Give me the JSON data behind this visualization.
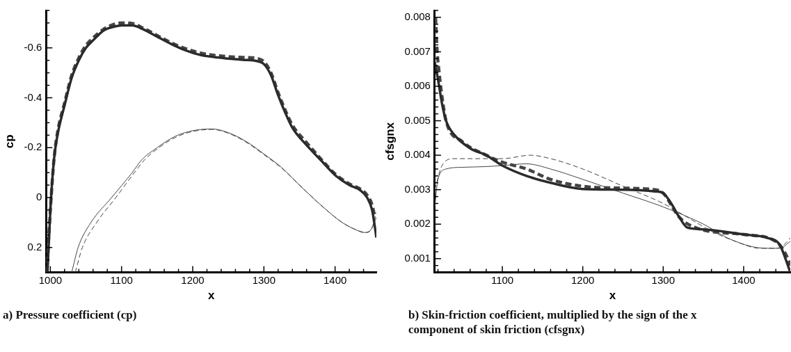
{
  "chart_data": [
    {
      "type": "line",
      "xlabel": "x",
      "ylabel": "cp",
      "xlim": [
        994,
        1458
      ],
      "ylim": [
        0.3,
        -0.75
      ],
      "xticks": [
        1000,
        {
          "value": 1020,
          "label": null
        },
        {
          "value": 1040,
          "label": null
        },
        {
          "value": 1060,
          "label": null
        },
        {
          "value": 1080,
          "label": null
        },
        1100,
        {
          "value": 1120,
          "label": null
        },
        {
          "value": 1140,
          "label": null
        },
        {
          "value": 1160,
          "label": null
        },
        {
          "value": 1180,
          "label": null
        },
        1200,
        {
          "value": 1220,
          "label": null
        },
        {
          "value": 1240,
          "label": null
        },
        {
          "value": 1260,
          "label": null
        },
        {
          "value": 1280,
          "label": null
        },
        1300,
        {
          "value": 1320,
          "label": null
        },
        {
          "value": 1340,
          "label": null
        },
        {
          "value": 1360,
          "label": null
        },
        {
          "value": 1380,
          "label": null
        },
        1400,
        {
          "value": 1420,
          "label": null
        },
        {
          "value": 1440,
          "label": null
        }
      ],
      "yticks": [
        {
          "value": -0.75,
          "label": null
        },
        {
          "value": -0.7,
          "label": null
        },
        {
          "value": -0.65,
          "label": null
        },
        -0.6,
        {
          "value": -0.55,
          "label": null
        },
        {
          "value": -0.5,
          "label": null
        },
        {
          "value": -0.45,
          "label": null
        },
        -0.4,
        {
          "value": -0.35,
          "label": null
        },
        {
          "value": -0.3,
          "label": null
        },
        {
          "value": -0.25,
          "label": null
        },
        -0.2,
        {
          "value": -0.15,
          "label": null
        },
        {
          "value": -0.1,
          "label": null
        },
        {
          "value": -0.05,
          "label": null
        },
        0,
        {
          "value": 0.05,
          "label": null
        },
        {
          "value": 0.1,
          "label": null
        },
        {
          "value": 0.15,
          "label": null
        },
        0.2,
        {
          "value": 0.25,
          "label": null
        },
        {
          "value": 0.3,
          "label": null
        }
      ],
      "grid": false,
      "legend": false,
      "marker": "none",
      "annotations": [
        "a) Pressure coefficient (cp)"
      ],
      "series": [
        {
          "color": "#2b2b2b",
          "line_style": "solid",
          "x": [
            996,
            1000,
            1005,
            1010,
            1020,
            1030,
            1040,
            1050,
            1060,
            1075,
            1090,
            1100,
            1115,
            1130,
            1150,
            1170,
            1190,
            1210,
            1230,
            1250,
            1270,
            1290,
            1300,
            1310,
            1320,
            1330,
            1340,
            1360,
            1380,
            1400,
            1420,
            1435,
            1445,
            1452,
            1456,
            1458
          ],
          "values": [
            0.3,
            0.05,
            -0.15,
            -0.25,
            -0.37,
            -0.48,
            -0.55,
            -0.6,
            -0.63,
            -0.67,
            -0.685,
            -0.69,
            -0.69,
            -0.675,
            -0.645,
            -0.615,
            -0.59,
            -0.572,
            -0.563,
            -0.557,
            -0.552,
            -0.547,
            -0.535,
            -0.49,
            -0.41,
            -0.34,
            -0.28,
            -0.21,
            -0.15,
            -0.09,
            -0.05,
            -0.03,
            0.0,
            0.05,
            0.12,
            0.16
          ]
        },
        {
          "color": "#444444",
          "line_style": "dashed",
          "x": [
            995,
            1000,
            1005,
            1010,
            1020,
            1030,
            1040,
            1050,
            1060,
            1075,
            1090,
            1100,
            1115,
            1130,
            1150,
            1170,
            1190,
            1210,
            1230,
            1250,
            1270,
            1290,
            1300,
            1310,
            1320,
            1330,
            1340,
            1360,
            1380,
            1400,
            1420,
            1435,
            1445,
            1452,
            1456
          ],
          "values": [
            0.3,
            0.05,
            -0.15,
            -0.26,
            -0.38,
            -0.49,
            -0.56,
            -0.61,
            -0.64,
            -0.675,
            -0.695,
            -0.7,
            -0.698,
            -0.68,
            -0.65,
            -0.62,
            -0.597,
            -0.58,
            -0.57,
            -0.565,
            -0.562,
            -0.558,
            -0.545,
            -0.5,
            -0.42,
            -0.35,
            -0.29,
            -0.22,
            -0.155,
            -0.095,
            -0.055,
            -0.035,
            -0.01,
            0.03,
            0.08
          ]
        },
        {
          "color": "#444444",
          "line_style": "solid",
          "x": [
            1030,
            1039,
            1057,
            1086,
            1115,
            1128,
            1150,
            1175,
            1200,
            1227,
            1250,
            1275,
            1300,
            1325,
            1350,
            1380,
            1410,
            1430,
            1440,
            1450,
            1458
          ],
          "values": [
            0.3,
            0.2,
            0.1,
            0.0,
            -0.1,
            -0.15,
            -0.2,
            -0.245,
            -0.268,
            -0.275,
            -0.26,
            -0.225,
            -0.175,
            -0.12,
            -0.05,
            0.03,
            0.1,
            0.13,
            0.14,
            0.13,
            0.08
          ]
        },
        {
          "color": "#444444",
          "line_style": "dashed",
          "x": [
            1035,
            1045,
            1065,
            1092,
            1118,
            1132,
            1150,
            1175,
            1200,
            1227,
            1250,
            1275,
            1300,
            1325,
            1350,
            1380,
            1410,
            1430,
            1445,
            1452,
            1458
          ],
          "values": [
            0.3,
            0.2,
            0.1,
            0.0,
            -0.1,
            -0.15,
            -0.195,
            -0.24,
            -0.265,
            -0.273,
            -0.258,
            -0.222,
            -0.172,
            -0.118,
            -0.05,
            0.03,
            0.1,
            0.13,
            0.14,
            0.12,
            0.06
          ]
        }
      ]
    },
    {
      "type": "line",
      "xlabel": "x",
      "ylabel": "cfsgnx",
      "xlim": [
        1016,
        1458
      ],
      "ylim": [
        0.0006,
        0.0082
      ],
      "xticks": [
        {
          "value": 1020,
          "label": null
        },
        {
          "value": 1040,
          "label": null
        },
        {
          "value": 1060,
          "label": null
        },
        {
          "value": 1080,
          "label": null
        },
        1100,
        {
          "value": 1120,
          "label": null
        },
        {
          "value": 1140,
          "label": null
        },
        {
          "value": 1160,
          "label": null
        },
        {
          "value": 1180,
          "label": null
        },
        1200,
        {
          "value": 1220,
          "label": null
        },
        {
          "value": 1240,
          "label": null
        },
        {
          "value": 1260,
          "label": null
        },
        {
          "value": 1280,
          "label": null
        },
        1300,
        {
          "value": 1320,
          "label": null
        },
        {
          "value": 1340,
          "label": null
        },
        {
          "value": 1360,
          "label": null
        },
        {
          "value": 1380,
          "label": null
        },
        1400,
        {
          "value": 1420,
          "label": null
        },
        {
          "value": 1440,
          "label": null
        }
      ],
      "yticks": [
        {
          "value": 0.0006,
          "label": null
        },
        {
          "value": 0.0008,
          "label": null
        },
        0.001,
        {
          "value": 0.0012,
          "label": null
        },
        {
          "value": 0.0014,
          "label": null
        },
        {
          "value": 0.0016,
          "label": null
        },
        {
          "value": 0.0018,
          "label": null
        },
        0.002,
        {
          "value": 0.0022,
          "label": null
        },
        {
          "value": 0.0024,
          "label": null
        },
        {
          "value": 0.0026,
          "label": null
        },
        {
          "value": 0.0028,
          "label": null
        },
        0.003,
        {
          "value": 0.0032,
          "label": null
        },
        {
          "value": 0.0034,
          "label": null
        },
        {
          "value": 0.0036,
          "label": null
        },
        {
          "value": 0.0038,
          "label": null
        },
        0.004,
        {
          "value": 0.0042,
          "label": null
        },
        {
          "value": 0.0044,
          "label": null
        },
        {
          "value": 0.0046,
          "label": null
        },
        {
          "value": 0.0048,
          "label": null
        },
        0.005,
        {
          "value": 0.0052,
          "label": null
        },
        {
          "value": 0.0054,
          "label": null
        },
        {
          "value": 0.0056,
          "label": null
        },
        {
          "value": 0.0058,
          "label": null
        },
        0.006,
        {
          "value": 0.0062,
          "label": null
        },
        {
          "value": 0.0064,
          "label": null
        },
        {
          "value": 0.0066,
          "label": null
        },
        {
          "value": 0.0068,
          "label": null
        },
        0.007,
        {
          "value": 0.0072,
          "label": null
        },
        {
          "value": 0.0074,
          "label": null
        },
        {
          "value": 0.0076,
          "label": null
        },
        {
          "value": 0.0078,
          "label": null
        },
        0.008,
        {
          "value": 0.0082,
          "label": null
        }
      ],
      "grid": false,
      "legend": false,
      "marker": "none",
      "annotations": [
        "b) Skin-friction coefficient, multiplied by the sign of the x component of skin friction (cfsgnx)"
      ],
      "series": [
        {
          "color": "#2b2b2b",
          "line_style": "solid",
          "x": [
            1016,
            1020,
            1025,
            1030,
            1040,
            1060,
            1080,
            1100,
            1130,
            1160,
            1200,
            1250,
            1290,
            1300,
            1310,
            1320,
            1330,
            1350,
            1400,
            1430,
            1445,
            1452,
            1458
          ],
          "values": [
            0.0067,
            0.0062,
            0.0055,
            0.005,
            0.0046,
            0.0042,
            0.004,
            0.0037,
            0.0034,
            0.0032,
            0.00302,
            0.003,
            0.00295,
            0.0029,
            0.0026,
            0.0022,
            0.0019,
            0.00185,
            0.0017,
            0.0016,
            0.0014,
            0.001,
            0.0006
          ]
        },
        {
          "color": "#444444",
          "line_style": "dashed",
          "x": [
            1017,
            1019,
            1021,
            1025,
            1030,
            1050,
            1080,
            1100,
            1130,
            1160,
            1200,
            1240,
            1290,
            1300,
            1320,
            1340,
            1400,
            1440,
            1455,
            1458
          ],
          "values": [
            0.008,
            0.007,
            0.0065,
            0.0057,
            0.005,
            0.0044,
            0.004,
            0.0038,
            0.0036,
            0.0033,
            0.0031,
            0.00305,
            0.003,
            0.0029,
            0.0022,
            0.0019,
            0.0017,
            0.0015,
            0.001,
            0.0008
          ]
        },
        {
          "color": "#444444",
          "line_style": "solid",
          "x": [
            1016,
            1020,
            1030,
            1050,
            1080,
            1100,
            1130,
            1160,
            1200,
            1250,
            1300,
            1350,
            1380,
            1410,
            1430,
            1445,
            1458
          ],
          "values": [
            0.0025,
            0.0033,
            0.0036,
            0.00365,
            0.00367,
            0.0037,
            0.00375,
            0.0036,
            0.0033,
            0.0029,
            0.0025,
            0.002,
            0.0016,
            0.00135,
            0.0013,
            0.0013,
            0.0015
          ]
        },
        {
          "color": "#444444",
          "line_style": "dashed",
          "x": [
            1016,
            1025,
            1040,
            1080,
            1100,
            1135,
            1160,
            1200,
            1250,
            1300,
            1330,
            1360,
            1390,
            1420,
            1440,
            1450,
            1458
          ],
          "values": [
            0.003,
            0.0037,
            0.0039,
            0.0039,
            0.0039,
            0.004,
            0.0039,
            0.0036,
            0.0031,
            0.0026,
            0.0022,
            0.0018,
            0.0015,
            0.0013,
            0.0013,
            0.0014,
            0.0016
          ]
        }
      ]
    }
  ]
}
